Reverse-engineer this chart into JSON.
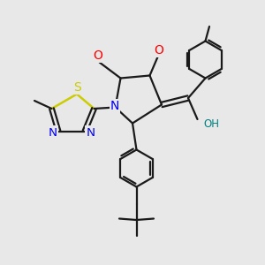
{
  "background_color": "#e8e8e8",
  "bond_color": "#1a1a1a",
  "atom_colors": {
    "O": "#ff0000",
    "N": "#0000ee",
    "S": "#cccc00",
    "H": "#008080",
    "C": "#1a1a1a"
  },
  "line_width": 1.6,
  "font_size": 8.5,
  "figsize": [
    3.0,
    3.0
  ],
  "dpi": 100
}
